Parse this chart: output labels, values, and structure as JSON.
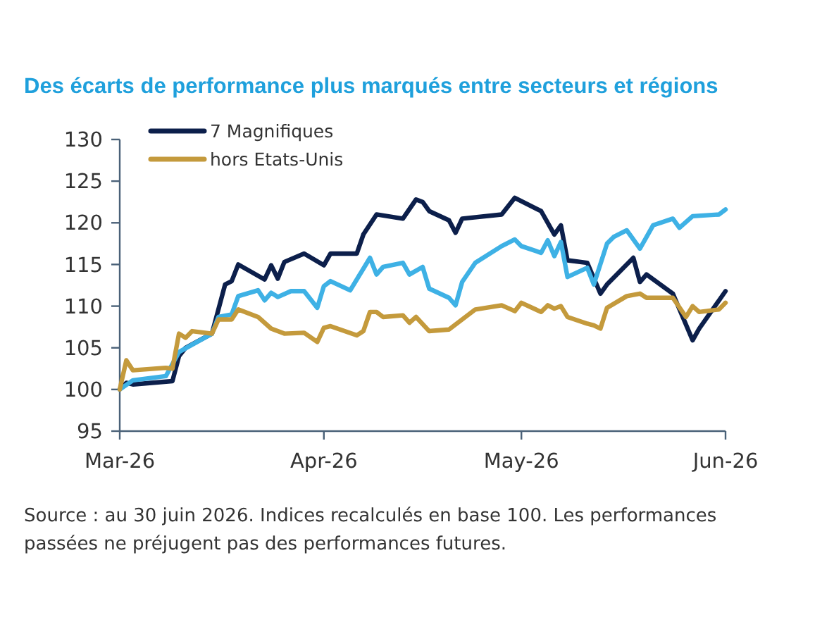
{
  "chart_data": {
    "type": "line",
    "title": "Des écarts de performance plus marqués entre secteurs et régions",
    "xlim": [
      "2026-03-01",
      "2026-06-01"
    ],
    "xticks": [
      {
        "value": "2026-03-01",
        "label": "Mar-26"
      },
      {
        "value": "2026-04-01",
        "label": "Apr-26"
      },
      {
        "value": "2026-05-01",
        "label": "May-26"
      },
      {
        "value": "2026-06-01",
        "label": "Jun-26"
      }
    ],
    "ylim": [
      95,
      130
    ],
    "yticks": [
      95,
      100,
      105,
      110,
      115,
      120,
      125,
      130
    ],
    "grid": false,
    "legend": "top left",
    "line_style": "solid",
    "marker": "none",
    "series": [
      {
        "name": "7 Magnifiques",
        "color": "#0c1f4b",
        "x": [
          "2026-03-01",
          "2026-03-02",
          "2026-03-03",
          "2026-03-09",
          "2026-03-10",
          "2026-03-11",
          "2026-03-15",
          "2026-03-17",
          "2026-03-18",
          "2026-03-19",
          "2026-03-23",
          "2026-03-24",
          "2026-03-25",
          "2026-03-26",
          "2026-03-29",
          "2026-04-01",
          "2026-04-02",
          "2026-04-06",
          "2026-04-07",
          "2026-04-09",
          "2026-04-13",
          "2026-04-15",
          "2026-04-16",
          "2026-04-17",
          "2026-04-20",
          "2026-04-21",
          "2026-04-22",
          "2026-04-28",
          "2026-04-30",
          "2026-05-04",
          "2026-05-06",
          "2026-05-07",
          "2026-05-08",
          "2026-05-11",
          "2026-05-13",
          "2026-05-14",
          "2026-05-18",
          "2026-05-19",
          "2026-05-20",
          "2026-05-24",
          "2026-05-27",
          "2026-05-28",
          "2026-06-01"
        ],
        "values": [
          100,
          100.8,
          100.6,
          101,
          104,
          105,
          106.7,
          112.6,
          113,
          115,
          113.2,
          114.9,
          113.3,
          115.3,
          116.3,
          114.9,
          116.3,
          116.3,
          118.6,
          121,
          120.5,
          122.8,
          122.5,
          121.4,
          120.3,
          118.8,
          120.5,
          121,
          123,
          121.4,
          118.6,
          119.7,
          115.5,
          115.2,
          111.5,
          112.6,
          115.8,
          112.9,
          113.8,
          111.5,
          105.9,
          107.3,
          111.8
        ]
      },
      {
        "color": "#3eb1e5",
        "x": [
          "2026-03-01",
          "2026-03-03",
          "2026-03-08",
          "2026-03-10",
          "2026-03-15",
          "2026-03-16",
          "2026-03-18",
          "2026-03-19",
          "2026-03-22",
          "2026-03-23",
          "2026-03-24",
          "2026-03-25",
          "2026-03-27",
          "2026-03-29",
          "2026-03-31",
          "2026-04-01",
          "2026-04-02",
          "2026-04-05",
          "2026-04-08",
          "2026-04-09",
          "2026-04-10",
          "2026-04-13",
          "2026-04-14",
          "2026-04-16",
          "2026-04-17",
          "2026-04-20",
          "2026-04-21",
          "2026-04-22",
          "2026-04-24",
          "2026-04-28",
          "2026-04-30",
          "2026-05-01",
          "2026-05-04",
          "2026-05-05",
          "2026-05-06",
          "2026-05-07",
          "2026-05-08",
          "2026-05-11",
          "2026-05-12",
          "2026-05-14",
          "2026-05-15",
          "2026-05-17",
          "2026-05-19",
          "2026-05-21",
          "2026-05-24",
          "2026-05-25",
          "2026-05-27",
          "2026-05-31",
          "2026-06-01"
        ],
        "values": [
          100,
          101.1,
          101.6,
          104.5,
          106.7,
          108.7,
          109,
          111.2,
          111.9,
          110.7,
          111.6,
          111.1,
          111.8,
          111.8,
          109.8,
          112.4,
          113,
          111.9,
          115.8,
          113.8,
          114.7,
          115.2,
          113.8,
          114.7,
          112.1,
          111,
          110.1,
          112.9,
          115.2,
          117.2,
          118,
          117.2,
          116.4,
          117.9,
          116,
          117.7,
          113.5,
          114.6,
          112.6,
          117.5,
          118.3,
          119.1,
          116.9,
          119.7,
          120.5,
          119.4,
          120.8,
          121,
          121.6
        ]
      },
      {
        "name": "hors Etats-Unis",
        "color": "#c49a3c",
        "x": [
          "2026-03-01",
          "2026-03-02",
          "2026-03-03",
          "2026-03-08",
          "2026-03-09",
          "2026-03-10",
          "2026-03-11",
          "2026-03-12",
          "2026-03-15",
          "2026-03-16",
          "2026-03-18",
          "2026-03-19",
          "2026-03-22",
          "2026-03-24",
          "2026-03-26",
          "2026-03-29",
          "2026-03-31",
          "2026-04-01",
          "2026-04-02",
          "2026-04-06",
          "2026-04-07",
          "2026-04-08",
          "2026-04-09",
          "2026-04-10",
          "2026-04-13",
          "2026-04-14",
          "2026-04-15",
          "2026-04-17",
          "2026-04-20",
          "2026-04-22",
          "2026-04-24",
          "2026-04-28",
          "2026-04-30",
          "2026-05-01",
          "2026-05-04",
          "2026-05-05",
          "2026-05-06",
          "2026-05-07",
          "2026-05-08",
          "2026-05-11",
          "2026-05-12",
          "2026-05-13",
          "2026-05-14",
          "2026-05-17",
          "2026-05-19",
          "2026-05-20",
          "2026-05-24",
          "2026-05-26",
          "2026-05-27",
          "2026-05-28",
          "2026-05-31",
          "2026-06-01"
        ],
        "values": [
          100,
          103.5,
          102.3,
          102.6,
          102.5,
          106.7,
          106.2,
          107,
          106.7,
          108.4,
          108.4,
          109.6,
          108.7,
          107.3,
          106.7,
          106.8,
          105.7,
          107.4,
          107.6,
          106.5,
          107,
          109.3,
          109.3,
          108.7,
          108.9,
          108,
          108.7,
          107,
          107.2,
          108.4,
          109.6,
          110.1,
          109.4,
          110.4,
          109.3,
          110.1,
          109.7,
          110,
          108.7,
          107.9,
          107.7,
          107.3,
          109.8,
          111.2,
          111.5,
          111,
          111,
          108.7,
          110,
          109.3,
          109.6,
          110.4
        ]
      }
    ],
    "annotations": [
      "Source : au 30 juin 2026. Indices recalculés en base 100. Les performances passées ne préjugent pas des performances futures."
    ]
  }
}
